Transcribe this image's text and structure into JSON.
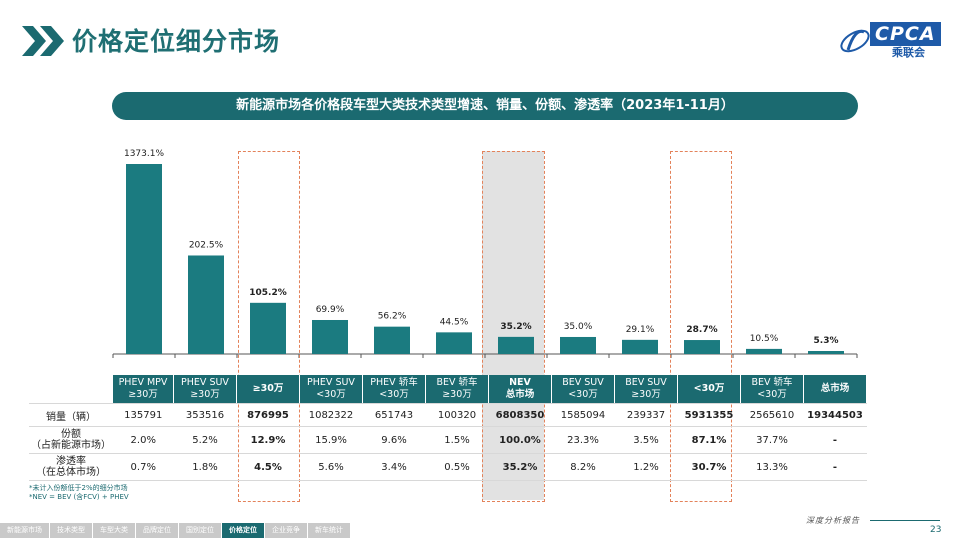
{
  "page": {
    "title": "价格定位细分市场",
    "logo_text": "CPCA",
    "logo_sub": "乘联会",
    "banner": "新能源市场各价格段车型大类技术类型增速、销量、份额、渗透率（2023年1-11月）",
    "page_number": "23",
    "report_tag": "深度分析报告",
    "footnotes": [
      "*未计入份额低于2%的细分市场",
      "*NEV = BEV (含FCV) + PHEV"
    ],
    "nav": [
      {
        "label": "新能源市场",
        "active": false
      },
      {
        "label": "技术类型",
        "active": false
      },
      {
        "label": "车型大类",
        "active": false
      },
      {
        "label": "品牌定位",
        "active": false
      },
      {
        "label": "国别定位",
        "active": false
      },
      {
        "label": "价格定位",
        "active": true
      },
      {
        "label": "企业竞争",
        "active": false
      },
      {
        "label": "新车统计",
        "active": false
      }
    ]
  },
  "chart_data": {
    "type": "bar",
    "categories": [
      "PHEV MPV ≥30万",
      "PHEV SUV ≥30万",
      "≥30万",
      "PHEV SUV <30万",
      "PHEV 轿车 <30万",
      "BEV 轿车 ≥30万",
      "NEV 总市场",
      "BEV SUV <30万",
      "BEV SUV ≥30万",
      "<30万",
      "BEV 轿车 <30万",
      "总市场"
    ],
    "values": [
      1373.1,
      202.5,
      105.2,
      69.9,
      56.2,
      44.5,
      35.2,
      35.0,
      29.1,
      28.7,
      10.5,
      5.3
    ],
    "value_labels": [
      "1373.1%",
      "202.5%",
      "105.2%",
      "69.9%",
      "56.2%",
      "44.5%",
      "35.2%",
      "35.0%",
      "29.1%",
      "28.7%",
      "10.5%",
      "5.3%"
    ],
    "bold_labels": [
      false,
      false,
      true,
      false,
      false,
      false,
      true,
      false,
      false,
      true,
      false,
      true
    ],
    "bar_color": "#1b7b80",
    "highlight_color": "#e3825a",
    "highlighted_categories": [
      "≥30万",
      "NEV 总市场",
      "<30万"
    ],
    "axis_break": true,
    "title": "",
    "xlabel": "",
    "ylabel": ""
  },
  "table": {
    "headers": [
      {
        "l1": "PHEV  MPV",
        "l2": "≥30万",
        "bold": false
      },
      {
        "l1": "PHEV  SUV",
        "l2": "≥30万",
        "bold": false
      },
      {
        "l1": "≥30万",
        "l2": "",
        "bold": true
      },
      {
        "l1": "PHEV  SUV",
        "l2": "<30万",
        "bold": false
      },
      {
        "l1": "PHEV  轿车",
        "l2": "<30万",
        "bold": false
      },
      {
        "l1": "BEV 轿车",
        "l2": "≥30万",
        "bold": false
      },
      {
        "l1": "NEV",
        "l2": "总市场",
        "bold": true
      },
      {
        "l1": "BEV SUV",
        "l2": "<30万",
        "bold": false
      },
      {
        "l1": "BEV SUV",
        "l2": "≥30万",
        "bold": false
      },
      {
        "l1": "<30万",
        "l2": "",
        "bold": true
      },
      {
        "l1": "BEV 轿车",
        "l2": "<30万",
        "bold": false
      },
      {
        "l1": "总市场",
        "l2": "",
        "bold": true
      }
    ],
    "rows": [
      {
        "label1": "销量（辆）",
        "label2": "",
        "values": [
          "135791",
          "353516",
          "876995",
          "1082322",
          "651743",
          "100320",
          "6808350",
          "1585094",
          "239337",
          "5931355",
          "2565610",
          "19344503"
        ]
      },
      {
        "label1": "份额",
        "label2": "（占新能源市场）",
        "values": [
          "2.0%",
          "5.2%",
          "12.9%",
          "15.9%",
          "9.6%",
          "1.5%",
          "100.0%",
          "23.3%",
          "3.5%",
          "87.1%",
          "37.7%",
          "-"
        ]
      },
      {
        "label1": "渗透率",
        "label2": "（在总体市场）",
        "values": [
          "0.7%",
          "1.8%",
          "4.5%",
          "5.6%",
          "3.4%",
          "0.5%",
          "35.2%",
          "8.2%",
          "1.2%",
          "30.7%",
          "13.3%",
          "-"
        ]
      }
    ],
    "bold_columns": [
      2,
      6,
      9,
      11
    ]
  }
}
